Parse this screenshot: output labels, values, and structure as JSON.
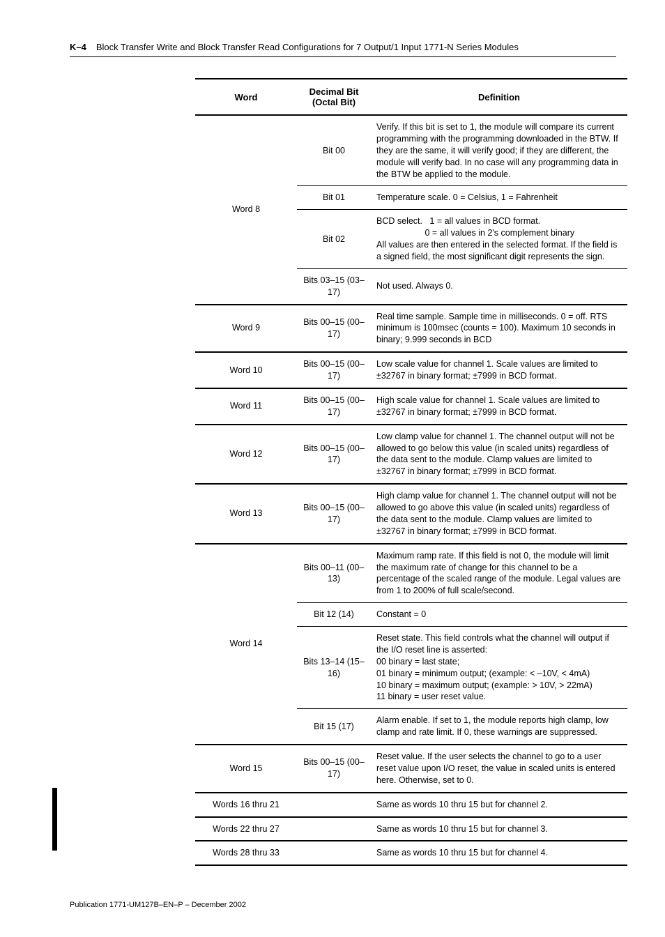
{
  "header": {
    "page_number": "K–4",
    "title": "Block Transfer Write and Block Transfer Read Configurations for 7 Output/1 Input 1771-N Series Modules"
  },
  "table": {
    "columns": [
      "Word",
      "Decimal Bit (Octal Bit)",
      "Definition"
    ],
    "rows": [
      {
        "word": "Word 8",
        "word_rowspan": 4,
        "bit": "Bit 00",
        "def": "Verify. If this bit is set to 1, the module will compare its current programming with the programming downloaded in the BTW. If they are the same, it will verify good; if they are different, the module will verify bad. In no case will any programming data in the BTW be applied to the module."
      },
      {
        "bit": "Bit 01",
        "def": "Temperature scale. 0 = Celsius, 1 = Fahrenheit"
      },
      {
        "bit": "Bit 02",
        "def": "BCD select.   1 = all values in BCD format.\n                    0 = all values in 2's complement binary\nAll values are then entered in the selected format. If the field is a signed field, the most significant digit represents the sign."
      },
      {
        "bit": "Bits 03–15 (03–17)",
        "def": "Not used. Always 0.",
        "last_in_group": true
      },
      {
        "word": "Word 9",
        "word_rowspan": 1,
        "bit": "Bits 00–15 (00–17)",
        "def": "Real time sample. Sample time in milliseconds. 0 = off. RTS minimum is 100msec (counts = 100). Maximum 10 seconds in binary; 9.999 seconds in BCD",
        "last_in_group": true
      },
      {
        "word": "Word 10",
        "word_rowspan": 1,
        "bit": "Bits 00–15 (00–17)",
        "def": "Low scale value for channel 1. Scale values are limited to ±32767 in binary format; ±7999 in BCD format.",
        "last_in_group": true
      },
      {
        "word": "Word 11",
        "word_rowspan": 1,
        "bit": "Bits 00–15 (00–17)",
        "def": "High scale value for channel 1. Scale values are limited to ±32767 in binary format; ±7999 in BCD format.",
        "last_in_group": true
      },
      {
        "word": "Word 12",
        "word_rowspan": 1,
        "bit": "Bits 00–15 (00–17)",
        "def": "Low clamp value for channel 1. The channel output will not be allowed to go below this value (in scaled units) regardless of the data sent to the module. Clamp values are limited to ±32767 in binary format; ±7999 in BCD format.",
        "last_in_group": true
      },
      {
        "word": "Word 13",
        "word_rowspan": 1,
        "bit": "Bits 00–15 (00–17)",
        "def": "High clamp value for channel 1. The channel output will not be allowed to go above this value (in scaled units) regardless of the data sent to the module. Clamp values are limited to ±32767 in binary format; ±7999 in BCD format.",
        "last_in_group": true
      },
      {
        "word": "Word 14",
        "word_rowspan": 4,
        "bit": "Bits 00–11 (00–13)",
        "def": "Maximum ramp rate. If this field is not 0, the module will limit the maximum rate of change for this channel to be a percentage of the scaled range of the module. Legal values are from 1 to 200% of full scale/second."
      },
      {
        "bit": "Bit 12 (14)",
        "def": "Constant = 0"
      },
      {
        "bit": "Bits 13–14 (15–16)",
        "def": "Reset state. This field controls what the channel will output if the I/O reset line is asserted:\n00 binary  = last state;\n01 binary = minimum output; (example: < –10V, < 4mA)\n10 binary = maximum output; (example: > 10V, > 22mA)\n11 binary = user reset value."
      },
      {
        "bit": "Bit 15 (17)",
        "def": "Alarm enable. If set to 1, the module reports high clamp, low clamp and rate limit. If 0, these warnings are suppressed.",
        "last_in_group": true
      },
      {
        "word": "Word 15",
        "word_rowspan": 1,
        "bit": "Bits 00–15 (00–17)",
        "def": "Reset value. If the user selects the channel to go to a user reset value upon I/O reset, the value in scaled units is entered here. Otherwise, set to 0.",
        "last_in_group": true
      },
      {
        "word": "Words 16 thru 21",
        "word_rowspan": 1,
        "bit": "",
        "def": "Same as words 10 thru 15 but for channel 2.",
        "last_in_group": true
      },
      {
        "word": "Words 22 thru 27",
        "word_rowspan": 1,
        "bit": "",
        "def": "Same as words 10 thru 15 but for channel 3.",
        "last_in_group": true
      },
      {
        "word": "Words 28 thru 33",
        "word_rowspan": 1,
        "bit": "",
        "def": "Same as words 10 thru 15 but for channel 4.",
        "last_in_group": true
      }
    ]
  },
  "footer": "Publication 1771-UM127B–EN–P – December 2002"
}
